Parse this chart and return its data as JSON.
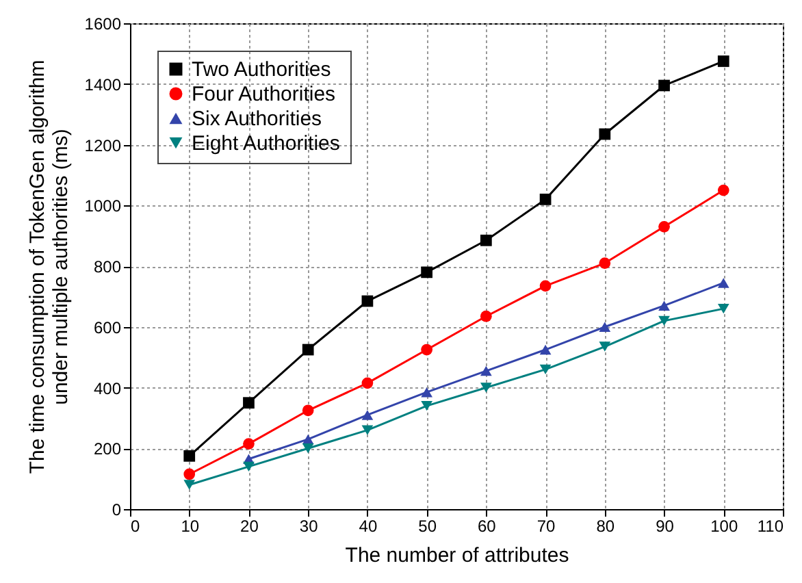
{
  "chart_data": {
    "type": "line",
    "xlabel": "The number of  attributes",
    "ylabel": "The time consumption of TokenGen algorithm\nunder multiple authorities (ms)",
    "x": [
      10,
      20,
      30,
      40,
      50,
      60,
      70,
      80,
      90,
      100
    ],
    "series": [
      {
        "name": "Two Authorities",
        "color": "#000000",
        "marker": "square",
        "values": [
          175,
          350,
          525,
          685,
          780,
          885,
          1020,
          1235,
          1395,
          1475
        ]
      },
      {
        "name": "Four Authorities",
        "color": "#ff0000",
        "marker": "circle",
        "values": [
          115,
          215,
          325,
          415,
          525,
          635,
          735,
          810,
          930,
          1050
        ]
      },
      {
        "name": "Six Authorities",
        "color": "#3344aa",
        "marker": "triangle",
        "x": [
          20,
          30,
          40,
          50,
          60,
          70,
          80,
          90,
          100
        ],
        "values": [
          165,
          230,
          310,
          385,
          455,
          525,
          600,
          670,
          745
        ]
      },
      {
        "name": "Eight Authorities",
        "color": "#008080",
        "marker": "triangle-down",
        "values": [
          80,
          140,
          200,
          260,
          340,
          400,
          460,
          535,
          620,
          660
        ]
      }
    ],
    "xlim": [
      0,
      110
    ],
    "xticks": [
      0,
      10,
      20,
      30,
      40,
      50,
      60,
      70,
      80,
      90,
      100,
      110
    ],
    "ylim": [
      0,
      1600
    ],
    "yticks": [
      0,
      200,
      400,
      600,
      800,
      1000,
      1200,
      1400,
      1600
    ],
    "grid": true,
    "legend": "top left",
    "line_style": "solid"
  }
}
